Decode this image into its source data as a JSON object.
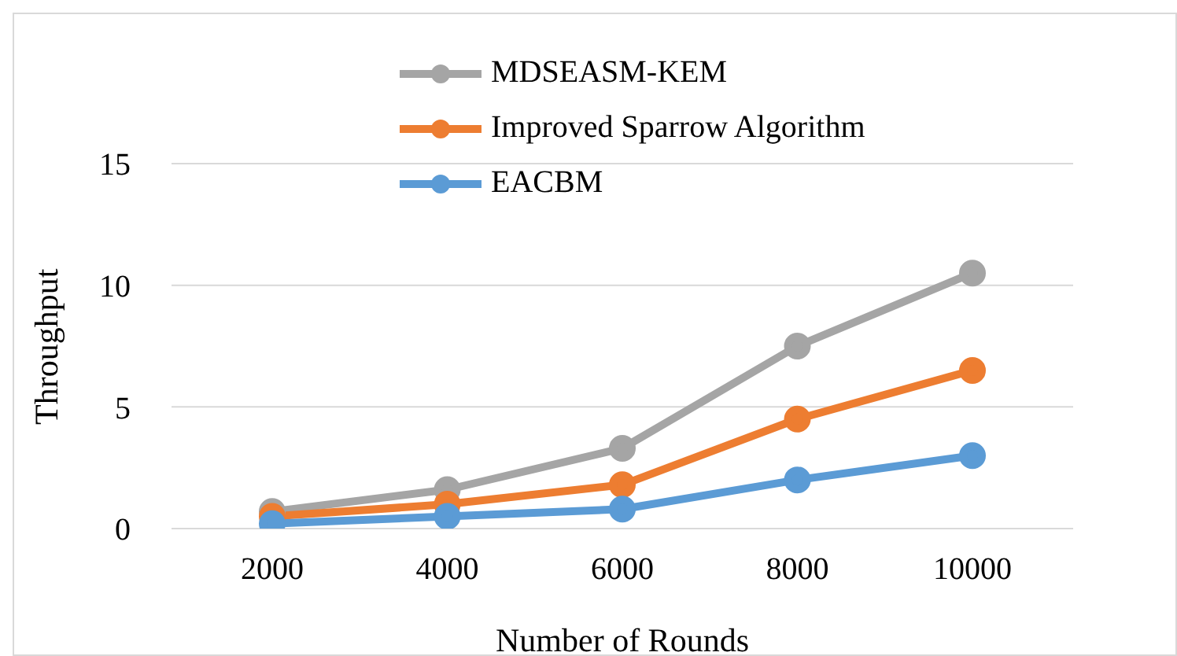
{
  "chart_data": {
    "type": "line",
    "xlabel": "Number of Rounds",
    "ylabel": "Throughput",
    "categories": [
      "2000",
      "4000",
      "6000",
      "8000",
      "10000"
    ],
    "series": [
      {
        "name": "MDSEASM-KEM",
        "color": "#a5a5a5",
        "values": [
          0.7,
          1.6,
          3.3,
          7.5,
          10.5
        ]
      },
      {
        "name": "Improved Sparrow Algorithm",
        "color": "#ed7d31",
        "values": [
          0.5,
          1.0,
          1.8,
          4.5,
          6.5
        ]
      },
      {
        "name": "EACBM",
        "color": "#5b9bd5",
        "values": [
          0.2,
          0.5,
          0.8,
          2.0,
          3.0
        ]
      }
    ],
    "ylim": [
      0,
      15
    ],
    "yticks": [
      0,
      5,
      10,
      15
    ],
    "grid": "y",
    "legend": "top",
    "marker": "circle",
    "line_style": "solid"
  }
}
